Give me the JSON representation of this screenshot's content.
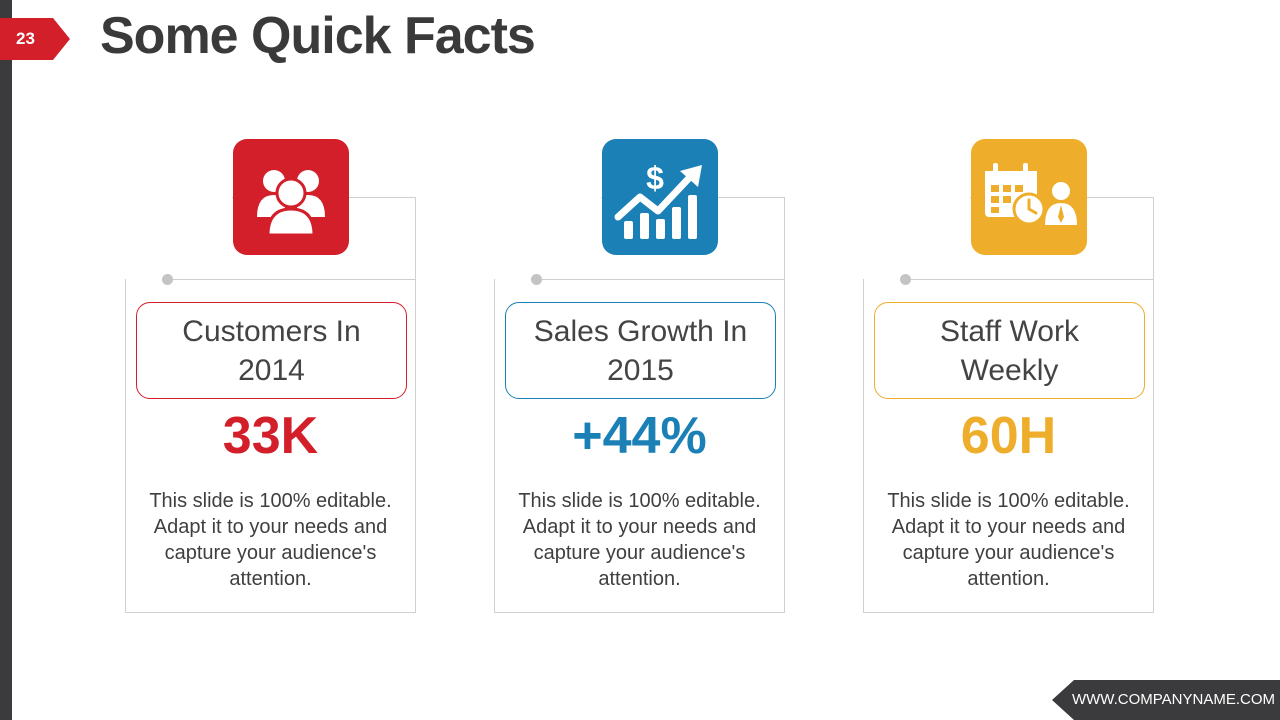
{
  "slide": {
    "number": "23",
    "title": "Some Quick Facts"
  },
  "cards": [
    {
      "icon": "customers-group-icon",
      "label": "Customers In 2014",
      "value": "33K",
      "description": "This slide is 100% editable. Adapt it to your needs and capture your audience's attention.",
      "color": "#d31f2a"
    },
    {
      "icon": "sales-growth-chart-icon",
      "label": "Sales Growth In 2015",
      "value": "+44%",
      "description": "This slide is 100% editable. Adapt it to your needs and capture your audience's attention.",
      "color": "#1a80b5"
    },
    {
      "icon": "staff-schedule-icon",
      "label": "Staff Work Weekly",
      "value": "60H",
      "description": "This slide is 100% editable. Adapt it to your needs and capture your audience's attention.",
      "color": "#eeae2b"
    }
  ],
  "footer": {
    "website": "WWW.COMPANYNAME.COM"
  },
  "colors": {
    "accent_red": "#d31f2a",
    "accent_blue": "#1a80b5",
    "accent_yellow": "#eeae2b",
    "dark_bar": "#3b3a3c"
  }
}
